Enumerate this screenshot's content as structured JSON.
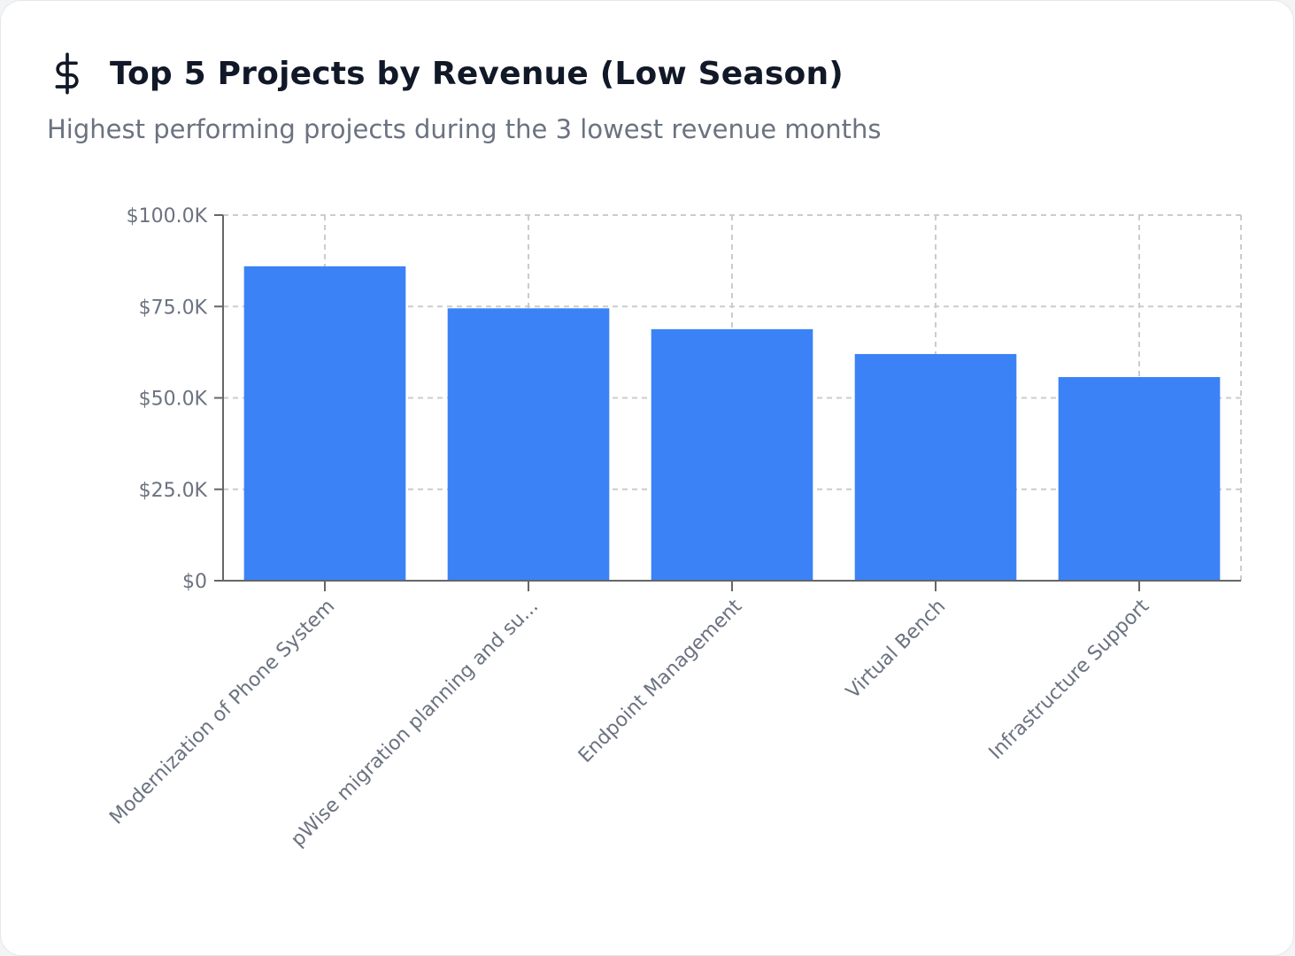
{
  "header": {
    "icon": "dollar-icon",
    "title": "Top 5 Projects by Revenue (Low Season)",
    "subtitle": "Highest performing projects during the 3 lowest revenue months"
  },
  "colors": {
    "bar": "#3b82f6",
    "grid": "#cccccc",
    "axis": "#666666",
    "text": "#6b7280"
  },
  "chart_data": {
    "type": "bar",
    "title": "Top 5 Projects by Revenue (Low Season)",
    "subtitle": "Highest performing projects during the 3 lowest revenue months",
    "xlabel": "",
    "ylabel": "",
    "categories": [
      "Modernization of Phone System",
      "pWise migration planning and su...",
      "Endpoint Management",
      "Virtual Bench",
      "Infrastructure Support"
    ],
    "values": [
      86000,
      74500,
      68800,
      62000,
      55700
    ],
    "ylim": [
      0,
      100000
    ],
    "yticks": [
      {
        "value": 0,
        "label": "$0"
      },
      {
        "value": 25000,
        "label": "$25.0K"
      },
      {
        "value": 50000,
        "label": "$50.0K"
      },
      {
        "value": 75000,
        "label": "$75.0K"
      },
      {
        "value": 100000,
        "label": "$100.0K"
      }
    ],
    "grid": true,
    "legend": "none"
  }
}
